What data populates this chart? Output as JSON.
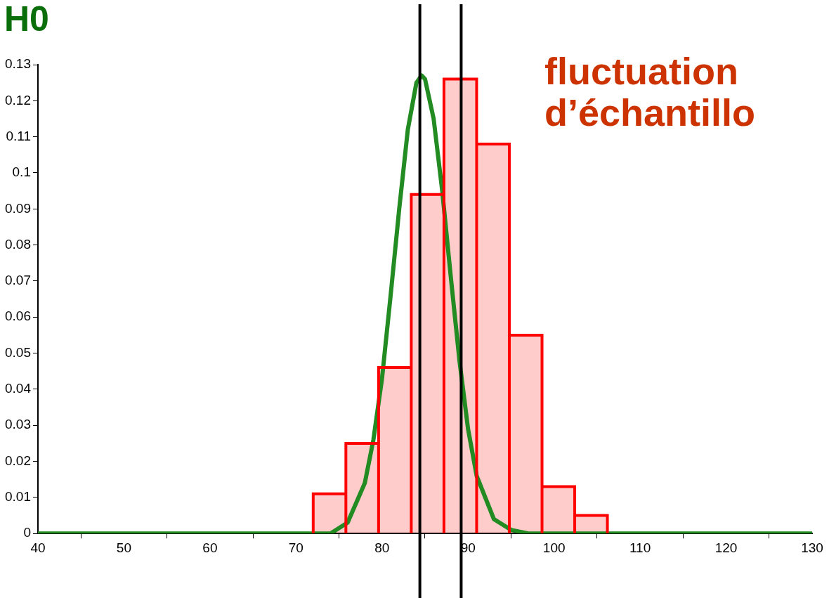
{
  "chart_data": {
    "type": "histogram",
    "title": "H0",
    "annotations": [
      "fluctuation d’échantillo"
    ],
    "bins": [
      72,
      75.8,
      79.6,
      83.4,
      87.2,
      91,
      94.8,
      98.6,
      102.4,
      106.2
    ],
    "values": [
      0.011,
      0.025,
      0.046,
      0.094,
      0.126,
      0.108,
      0.055,
      0.013,
      0.005
    ],
    "color": "#ff0000",
    "series": [
      {
        "type": "line",
        "color": "#228b22",
        "x": [
          40,
          60,
          70,
          72,
          74,
          76,
          78,
          79,
          80,
          81,
          82,
          83,
          84,
          84.6,
          85,
          86,
          87,
          88,
          89,
          90,
          91,
          93,
          95,
          97,
          110,
          130
        ],
        "values": [
          0,
          0,
          0,
          0,
          0,
          0.003,
          0.014,
          0.026,
          0.043,
          0.066,
          0.09,
          0.112,
          0.125,
          0.127,
          0.126,
          0.115,
          0.095,
          0.071,
          0.048,
          0.029,
          0.016,
          0.004,
          0.001,
          0,
          0,
          0
        ]
      }
    ],
    "ref_lines": [
      {
        "axis": "x",
        "value": 84.4,
        "color": "#000000"
      },
      {
        "axis": "x",
        "value": 89.2,
        "color": "#000000"
      }
    ],
    "xlim": [
      40,
      130
    ],
    "xticks": [
      40,
      50,
      60,
      70,
      80,
      90,
      100,
      110,
      120,
      130
    ],
    "ylim": [
      0,
      0.13
    ],
    "yticks": [
      0,
      0.01,
      0.02,
      0.03,
      0.04,
      0.05,
      0.06,
      0.07,
      0.08,
      0.09,
      0.1,
      0.11,
      0.12,
      0.13
    ],
    "grid": false,
    "legend": false,
    "marker": "none"
  }
}
